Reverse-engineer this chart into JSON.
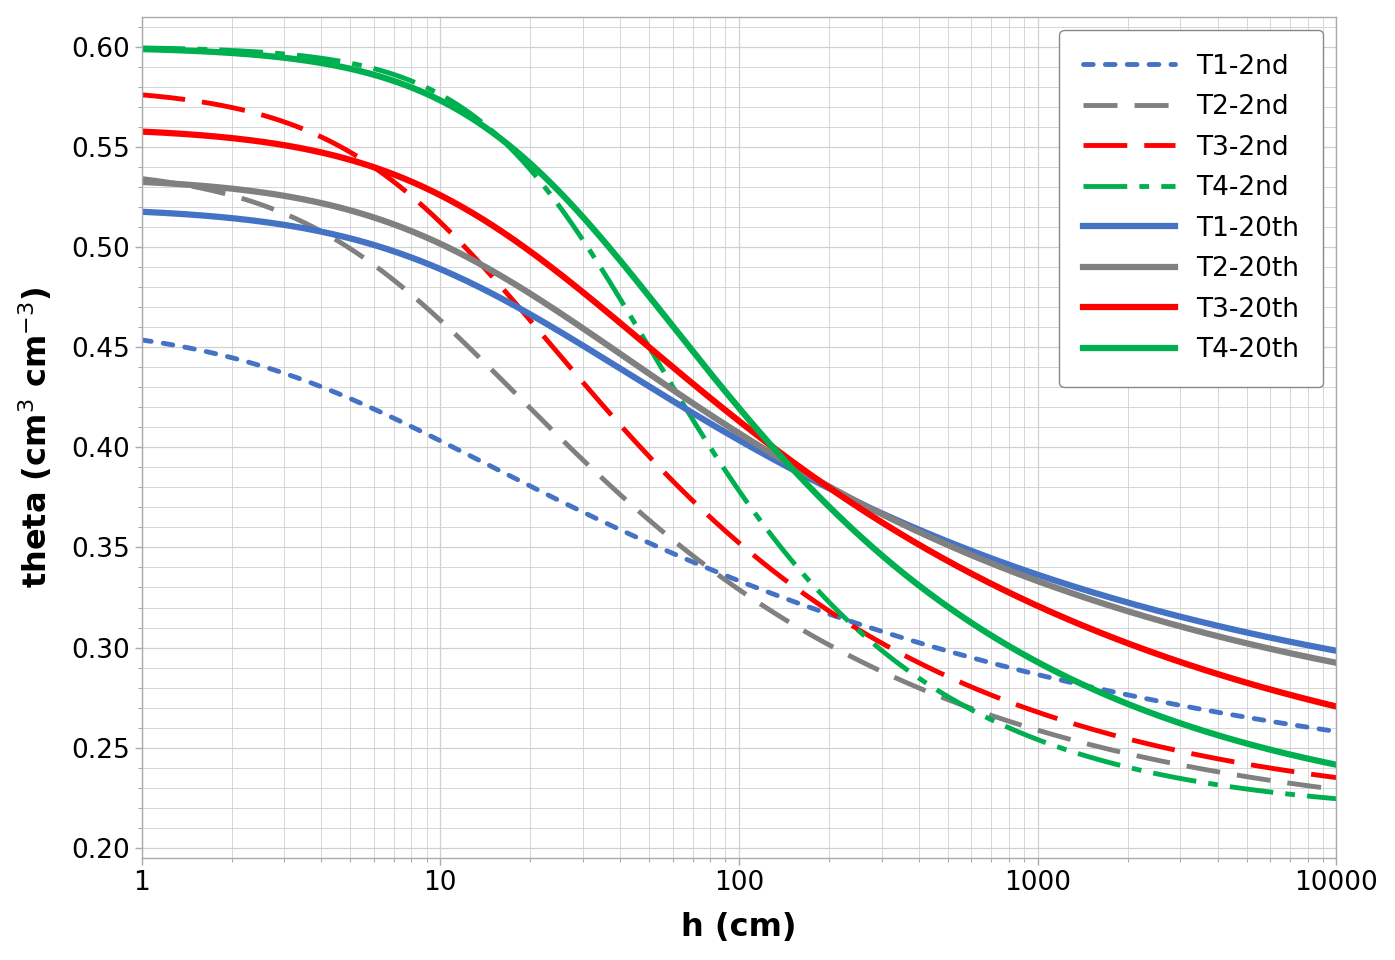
{
  "xlabel": "h (cm)",
  "ylim": [
    0.195,
    0.615
  ],
  "xlim": [
    1,
    10000
  ],
  "yticks": [
    0.2,
    0.25,
    0.3,
    0.35,
    0.4,
    0.45,
    0.5,
    0.55,
    0.6
  ],
  "background_color": "#ffffff",
  "grid_color": "#d0d0d0",
  "curves": [
    {
      "label": "T1-2nd",
      "color": "#4472C4",
      "linestyle": "dotted",
      "linewidth": 3.5,
      "theta_r": 0.215,
      "theta_s": 0.462,
      "alpha": 0.28,
      "n": 1.22
    },
    {
      "label": "T2-2nd",
      "color": "#808080",
      "linestyle": "dashed",
      "linewidth": 3.5,
      "theta_r": 0.208,
      "theta_s": 0.54,
      "alpha": 0.14,
      "n": 1.38
    },
    {
      "label": "T3-2nd",
      "color": "#FF0000",
      "linestyle": "dashed",
      "linewidth": 3.5,
      "theta_r": 0.215,
      "theta_s": 0.58,
      "alpha": 0.1,
      "n": 1.42
    },
    {
      "label": "T4-2nd",
      "color": "#00B050",
      "linestyle": "dashdot",
      "linewidth": 3.5,
      "theta_r": 0.216,
      "theta_s": 0.6,
      "alpha": 0.035,
      "n": 1.65
    },
    {
      "label": "T1-20th",
      "color": "#4472C4",
      "linestyle": "solid",
      "linewidth": 4.5,
      "theta_r": 0.252,
      "theta_s": 0.52,
      "alpha": 0.085,
      "n": 1.26
    },
    {
      "label": "T2-20th",
      "color": "#808080",
      "linestyle": "solid",
      "linewidth": 4.5,
      "theta_r": 0.245,
      "theta_s": 0.535,
      "alpha": 0.082,
      "n": 1.27
    },
    {
      "label": "T3-20th",
      "color": "#FF0000",
      "linestyle": "solid",
      "linewidth": 4.5,
      "theta_r": 0.215,
      "theta_s": 0.56,
      "alpha": 0.068,
      "n": 1.28
    },
    {
      "label": "T4-20th",
      "color": "#00B050",
      "linestyle": "solid",
      "linewidth": 4.5,
      "theta_r": 0.21,
      "theta_s": 0.6,
      "alpha": 0.04,
      "n": 1.42
    }
  ],
  "legend_fontsize": 19,
  "axis_label_fontsize": 23,
  "tick_fontsize": 19
}
